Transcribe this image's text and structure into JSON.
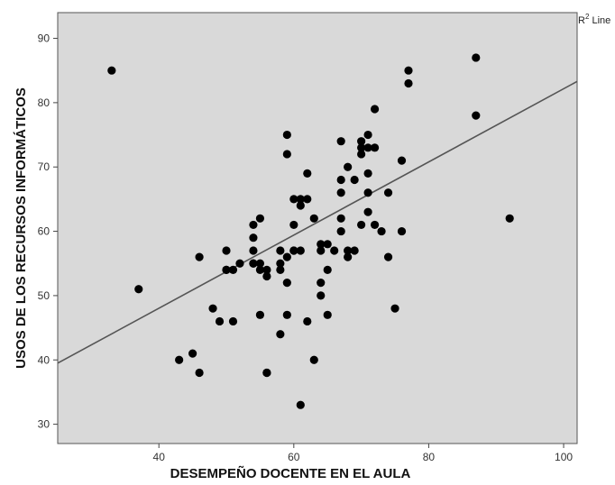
{
  "chart_data": {
    "type": "scatter",
    "xlabel": "DESEMPEÑO DOCENTE  EN EL AULA",
    "ylabel": "USOS DE LOS RECURSOS INFORMÁTICOS",
    "xlim": [
      25,
      102
    ],
    "ylim": [
      27,
      94
    ],
    "xticks": [
      "40",
      "60",
      "80",
      "100"
    ],
    "xtick_values": [
      40,
      60,
      80,
      100
    ],
    "yticks": [
      "30",
      "40",
      "50",
      "60",
      "70",
      "80",
      "90"
    ],
    "ytick_values": [
      30,
      40,
      50,
      60,
      70,
      80,
      90
    ],
    "grid": false,
    "legend": {
      "text": "R",
      "superscript": "2",
      "suffix": " Line",
      "placement": "top-right"
    },
    "fit_line": {
      "x": [
        25,
        102
      ],
      "y": [
        39.5,
        83.3
      ]
    },
    "colors": {
      "plot_background": "#d9d9d9",
      "points": "#000000",
      "fit_line": "#555555"
    },
    "x": [
      33,
      37,
      43,
      45,
      46,
      46,
      48,
      49,
      50,
      50,
      50,
      51,
      51,
      52,
      54,
      54,
      54,
      54,
      54,
      55,
      55,
      55,
      55,
      56,
      56,
      56,
      58,
      58,
      58,
      58,
      59,
      59,
      59,
      59,
      59,
      60,
      60,
      60,
      60,
      61,
      61,
      61,
      62,
      62,
      62,
      63,
      63,
      64,
      64,
      64,
      64,
      65,
      65,
      65,
      66,
      67,
      67,
      67,
      67,
      67,
      68,
      68,
      68,
      69,
      69,
      70,
      70,
      70,
      70,
      71,
      71,
      71,
      71,
      71,
      72,
      72,
      72,
      73,
      74,
      74,
      75,
      76,
      76,
      77,
      77,
      87,
      87,
      92,
      56,
      61
    ],
    "y": [
      85,
      51,
      40,
      41,
      38,
      56,
      48,
      46,
      54,
      57,
      54,
      46,
      54,
      55,
      61,
      59,
      57,
      55,
      55,
      62,
      55,
      47,
      54,
      53,
      54,
      38,
      57,
      55,
      54,
      44,
      75,
      72,
      56,
      52,
      47,
      61,
      65,
      57,
      57,
      65,
      64,
      57,
      69,
      65,
      46,
      62,
      40,
      58,
      57,
      52,
      50,
      58,
      54,
      47,
      57,
      74,
      68,
      62,
      60,
      66,
      70,
      56,
      57,
      68,
      57,
      73,
      72,
      74,
      61,
      75,
      73,
      69,
      66,
      63,
      73,
      79,
      61,
      60,
      66,
      56,
      48,
      71,
      60,
      85,
      83,
      87,
      78,
      62,
      38,
      33
    ]
  }
}
